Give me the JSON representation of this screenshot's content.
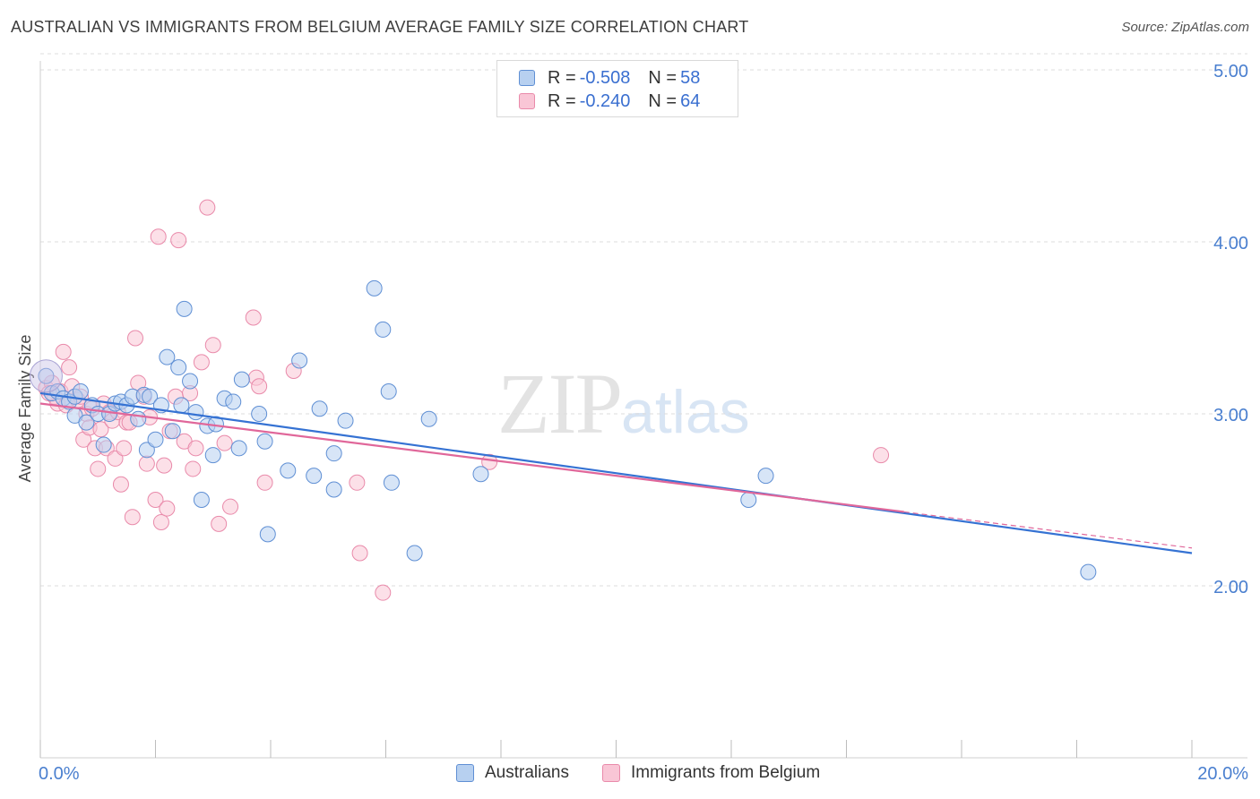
{
  "title": "AUSTRALIAN VS IMMIGRANTS FROM BELGIUM AVERAGE FAMILY SIZE CORRELATION CHART",
  "source": "Source: ZipAtlas.com",
  "watermark": {
    "zip": "ZIP",
    "atlas": "atlas"
  },
  "legend": {
    "rows": [
      {
        "r_label": "R = ",
        "r_value": "-0.508",
        "n_label": "N = ",
        "n_value": "58"
      },
      {
        "r_label": "R = ",
        "r_value": "-0.240",
        "n_label": "N = ",
        "n_value": "64"
      }
    ]
  },
  "colors": {
    "australians_fill": "#b7d0f0",
    "australians_stroke": "#5f8fd4",
    "australians_line": "#3572d3",
    "belgium_fill": "#f9c6d6",
    "belgium_stroke": "#e98aaa",
    "belgium_line": "#e0679a",
    "tick_label": "#4a7fcf",
    "grid": "#dcdcdc"
  },
  "chart_data": {
    "type": "scatter",
    "title": "AUSTRALIAN VS IMMIGRANTS FROM BELGIUM AVERAGE FAMILY SIZE CORRELATION CHART",
    "xlabel": "",
    "ylabel": "Average Family Size",
    "xlim": [
      0,
      20
    ],
    "ylim": [
      1.0,
      5.1
    ],
    "x_tick_labels": [
      "0.0%",
      "20.0%"
    ],
    "y_ticks": [
      2.0,
      3.0,
      4.0,
      5.0
    ],
    "y_tick_labels": [
      "2.00",
      "3.00",
      "4.00",
      "5.00"
    ],
    "grid": true,
    "legend_position": "top-center",
    "series": [
      {
        "name": "Australians",
        "r": -0.508,
        "n": 58,
        "trend": {
          "x": [
            0,
            20
          ],
          "y": [
            3.12,
            2.19
          ]
        },
        "points": [
          [
            0.1,
            3.22
          ],
          [
            0.2,
            3.12
          ],
          [
            0.3,
            3.13
          ],
          [
            0.4,
            3.09
          ],
          [
            0.5,
            3.07
          ],
          [
            0.6,
            3.1
          ],
          [
            0.7,
            3.13
          ],
          [
            0.6,
            2.99
          ],
          [
            0.8,
            2.95
          ],
          [
            0.9,
            3.05
          ],
          [
            1.0,
            3.0
          ],
          [
            1.1,
            2.82
          ],
          [
            1.2,
            3.0
          ],
          [
            1.3,
            3.06
          ],
          [
            1.4,
            3.07
          ],
          [
            1.5,
            3.05
          ],
          [
            1.6,
            3.1
          ],
          [
            1.7,
            2.97
          ],
          [
            1.8,
            3.11
          ],
          [
            1.85,
            2.79
          ],
          [
            1.9,
            3.1
          ],
          [
            2.0,
            2.85
          ],
          [
            2.1,
            3.05
          ],
          [
            2.2,
            3.33
          ],
          [
            2.3,
            2.9
          ],
          [
            2.4,
            3.27
          ],
          [
            2.45,
            3.05
          ],
          [
            2.5,
            3.61
          ],
          [
            2.6,
            3.19
          ],
          [
            2.7,
            3.01
          ],
          [
            2.8,
            2.5
          ],
          [
            2.9,
            2.93
          ],
          [
            3.0,
            2.76
          ],
          [
            3.05,
            2.94
          ],
          [
            3.2,
            3.09
          ],
          [
            3.35,
            3.07
          ],
          [
            3.45,
            2.8
          ],
          [
            3.5,
            3.2
          ],
          [
            3.8,
            3.0
          ],
          [
            3.9,
            2.84
          ],
          [
            3.95,
            2.3
          ],
          [
            4.3,
            2.67
          ],
          [
            4.5,
            3.31
          ],
          [
            4.75,
            2.64
          ],
          [
            4.85,
            3.03
          ],
          [
            5.1,
            2.56
          ],
          [
            5.3,
            2.96
          ],
          [
            5.1,
            2.77
          ],
          [
            5.8,
            3.73
          ],
          [
            5.95,
            3.49
          ],
          [
            6.05,
            3.13
          ],
          [
            6.1,
            2.6
          ],
          [
            6.5,
            2.19
          ],
          [
            6.75,
            2.97
          ],
          [
            7.65,
            2.65
          ],
          [
            12.3,
            2.5
          ],
          [
            12.6,
            2.64
          ],
          [
            18.2,
            2.08
          ]
        ]
      },
      {
        "name": "Immigrants from Belgium",
        "r": -0.24,
        "n": 64,
        "trend": {
          "x": [
            0,
            15.0
          ],
          "y": [
            3.06,
            2.43
          ]
        },
        "trend_dashed": {
          "x": [
            15.0,
            20
          ],
          "y": [
            2.43,
            2.22
          ]
        },
        "points": [
          [
            0.1,
            3.15
          ],
          [
            0.2,
            3.18
          ],
          [
            0.25,
            3.1
          ],
          [
            0.3,
            3.06
          ],
          [
            0.35,
            3.13
          ],
          [
            0.4,
            3.36
          ],
          [
            0.45,
            3.05
          ],
          [
            0.5,
            3.27
          ],
          [
            0.55,
            3.16
          ],
          [
            0.6,
            3.1
          ],
          [
            0.65,
            3.08
          ],
          [
            0.7,
            3.1
          ],
          [
            0.75,
            2.85
          ],
          [
            0.8,
            3.0
          ],
          [
            0.85,
            2.92
          ],
          [
            0.9,
            3.03
          ],
          [
            0.95,
            2.8
          ],
          [
            1.0,
            2.68
          ],
          [
            1.05,
            2.91
          ],
          [
            1.1,
            3.06
          ],
          [
            1.15,
            2.8
          ],
          [
            1.2,
            3.01
          ],
          [
            1.25,
            2.96
          ],
          [
            1.3,
            2.74
          ],
          [
            1.35,
            3.01
          ],
          [
            1.4,
            2.59
          ],
          [
            1.45,
            2.8
          ],
          [
            1.5,
            2.95
          ],
          [
            1.55,
            2.95
          ],
          [
            1.6,
            2.4
          ],
          [
            1.65,
            3.44
          ],
          [
            1.7,
            3.18
          ],
          [
            1.8,
            3.1
          ],
          [
            1.85,
            2.71
          ],
          [
            1.9,
            2.98
          ],
          [
            2.0,
            2.5
          ],
          [
            2.05,
            4.03
          ],
          [
            2.1,
            2.37
          ],
          [
            2.15,
            2.7
          ],
          [
            2.2,
            2.45
          ],
          [
            2.25,
            2.9
          ],
          [
            2.35,
            3.1
          ],
          [
            2.4,
            4.01
          ],
          [
            2.5,
            2.84
          ],
          [
            2.6,
            3.12
          ],
          [
            2.65,
            2.68
          ],
          [
            2.7,
            2.8
          ],
          [
            2.8,
            3.3
          ],
          [
            2.9,
            4.2
          ],
          [
            3.0,
            3.4
          ],
          [
            3.1,
            2.36
          ],
          [
            3.2,
            2.83
          ],
          [
            3.3,
            2.46
          ],
          [
            3.7,
            3.56
          ],
          [
            3.75,
            3.21
          ],
          [
            3.8,
            3.16
          ],
          [
            3.9,
            2.6
          ],
          [
            4.4,
            3.25
          ],
          [
            5.5,
            2.6
          ],
          [
            5.55,
            2.19
          ],
          [
            5.95,
            1.96
          ],
          [
            7.8,
            2.72
          ],
          [
            14.6,
            2.76
          ],
          [
            0.15,
            3.12
          ]
        ]
      }
    ]
  }
}
